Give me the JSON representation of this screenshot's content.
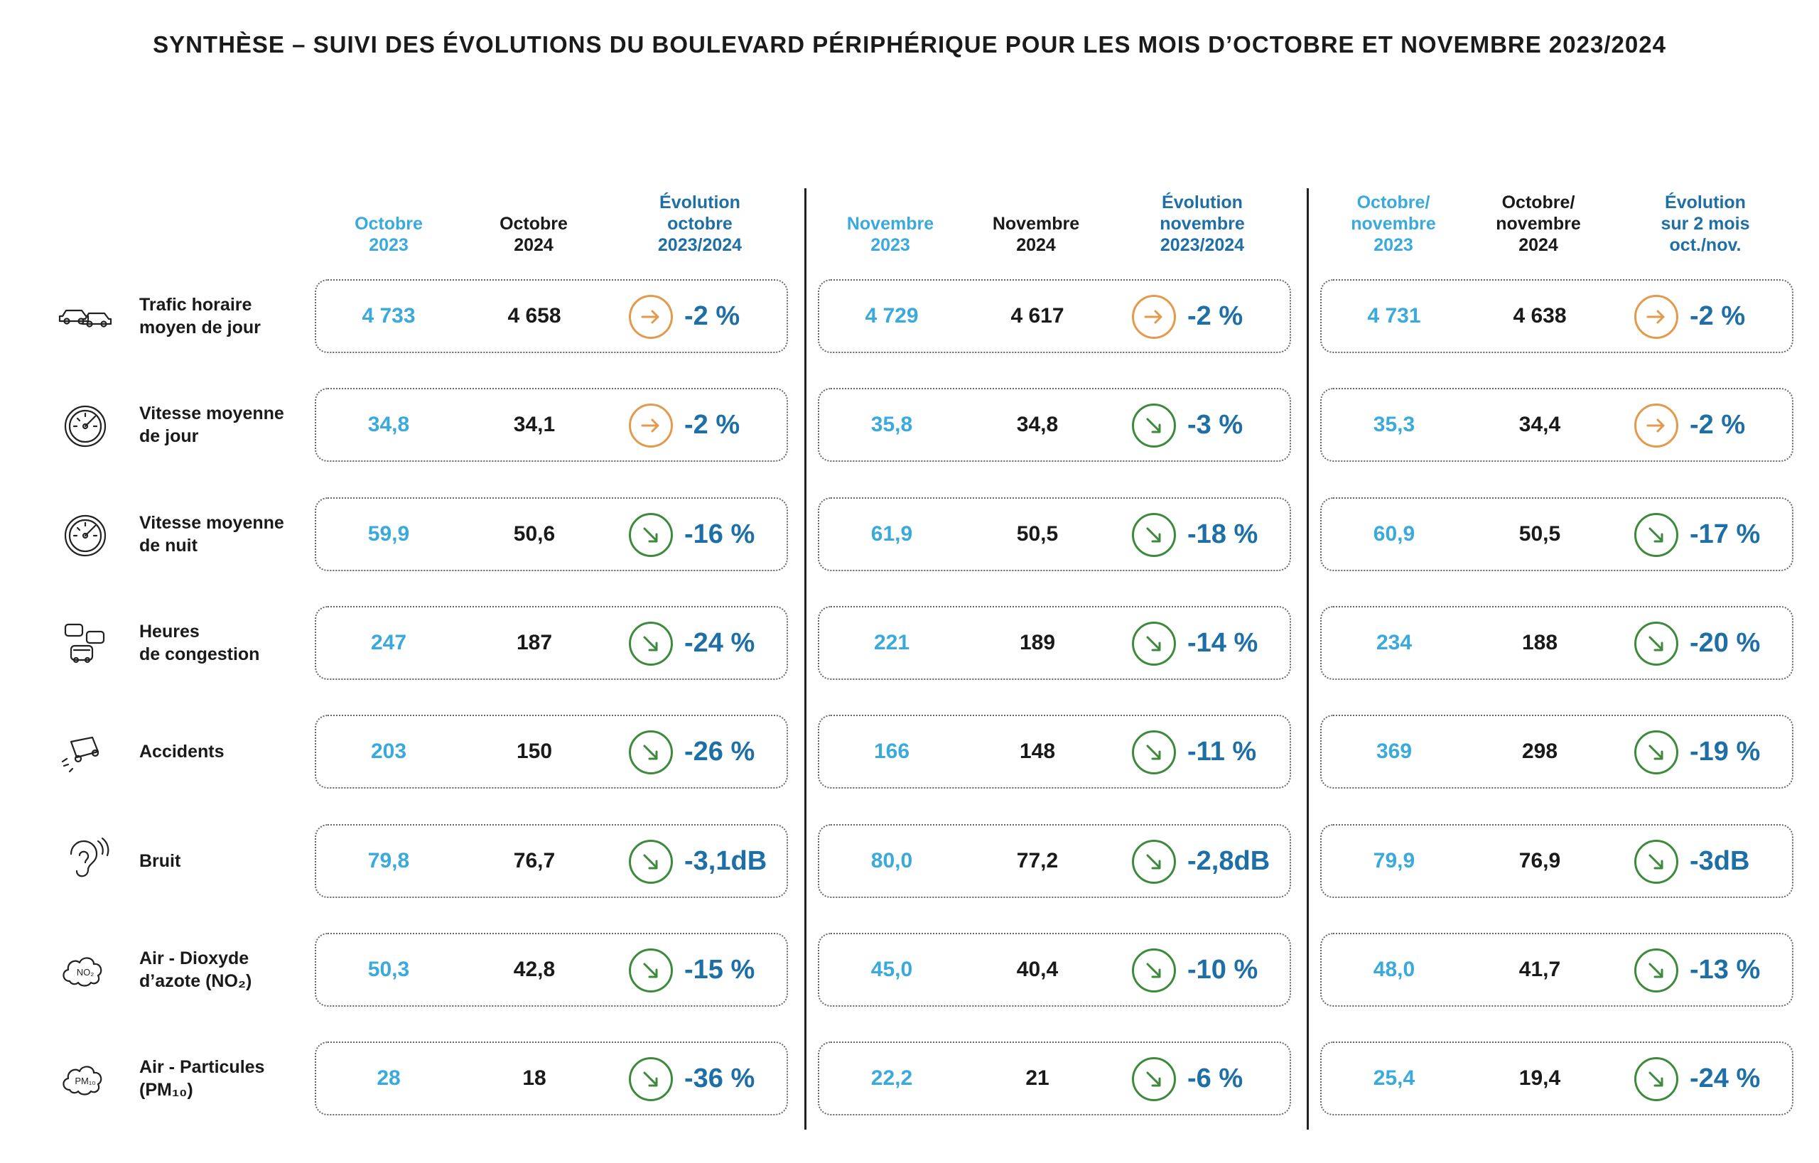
{
  "title": "SYNTHÈSE – SUIVI DES ÉVOLUTIONS DU BOULEVARD PÉRIPHÉRIQUE POUR LES MOIS D’OCTOBRE ET NOVEMBRE 2023/2024",
  "colors": {
    "y2023": "#3aa9dc",
    "y2024": "#1a1a1a",
    "evolution": "#1f6fa7",
    "arrow_flat": "#e39a4c",
    "arrow_down": "#3d8a3d"
  },
  "groups": [
    {
      "headers": {
        "y2023": "Octobre\n2023",
        "y2024": "Octobre\n2024",
        "evo": "Évolution\noctobre\n2023/2024"
      }
    },
    {
      "headers": {
        "y2023": "Novembre\n2023",
        "y2024": "Novembre\n2024",
        "evo": "Évolution\nnovembre\n2023/2024"
      }
    },
    {
      "headers": {
        "y2023": "Octobre/\nnovembre\n2023",
        "y2024": "Octobre/\nnovembre\n2024",
        "evo": "Évolution\nsur 2 mois\noct./nov."
      }
    }
  ],
  "rows": [
    {
      "label": "Trafic horaire\nmoyen de jour",
      "icon": "cars-icon",
      "cells": [
        {
          "v2023": "4 733",
          "v2024": "4 658",
          "trend": "flat",
          "pct": "-2 %"
        },
        {
          "v2023": "4 729",
          "v2024": "4 617",
          "trend": "flat",
          "pct": "-2 %"
        },
        {
          "v2023": "4 731",
          "v2024": "4 638",
          "trend": "flat",
          "pct": "-2 %"
        }
      ]
    },
    {
      "label": "Vitesse moyenne\nde jour",
      "icon": "speedometer-icon",
      "cells": [
        {
          "v2023": "34,8",
          "v2024": "34,1",
          "trend": "flat",
          "pct": "-2 %"
        },
        {
          "v2023": "35,8",
          "v2024": "34,8",
          "trend": "down",
          "pct": "-3 %"
        },
        {
          "v2023": "35,3",
          "v2024": "34,4",
          "trend": "flat",
          "pct": "-2 %"
        }
      ]
    },
    {
      "label": "Vitesse moyenne\nde nuit",
      "icon": "speedometer-icon",
      "cells": [
        {
          "v2023": "59,9",
          "v2024": "50,6",
          "trend": "down",
          "pct": "-16 %"
        },
        {
          "v2023": "61,9",
          "v2024": "50,5",
          "trend": "down",
          "pct": "-18 %"
        },
        {
          "v2023": "60,9",
          "v2024": "50,5",
          "trend": "down",
          "pct": "-17 %"
        }
      ]
    },
    {
      "label": "Heures\nde congestion",
      "icon": "traffic-jam-icon",
      "cells": [
        {
          "v2023": "247",
          "v2024": "187",
          "trend": "down",
          "pct": "-24 %"
        },
        {
          "v2023": "221",
          "v2024": "189",
          "trend": "down",
          "pct": "-14 %"
        },
        {
          "v2023": "234",
          "v2024": "188",
          "trend": "down",
          "pct": "-20 %"
        }
      ]
    },
    {
      "label": "Accidents",
      "icon": "accident-icon",
      "cells": [
        {
          "v2023": "203",
          "v2024": "150",
          "trend": "down",
          "pct": "-26 %"
        },
        {
          "v2023": "166",
          "v2024": "148",
          "trend": "down",
          "pct": "-11 %"
        },
        {
          "v2023": "369",
          "v2024": "298",
          "trend": "down",
          "pct": "-19 %"
        }
      ]
    },
    {
      "label": "Bruit",
      "icon": "ear-icon",
      "cells": [
        {
          "v2023": "79,8",
          "v2024": "76,7",
          "trend": "down",
          "pct": "-3,1dB"
        },
        {
          "v2023": "80,0",
          "v2024": "77,2",
          "trend": "down",
          "pct": "-2,8dB"
        },
        {
          "v2023": "79,9",
          "v2024": "76,9",
          "trend": "down",
          "pct": "-3dB"
        }
      ]
    },
    {
      "label": "Air - Dioxyde\nd’azote (NO₂)",
      "icon": "no2-cloud-icon",
      "cells": [
        {
          "v2023": "50,3",
          "v2024": "42,8",
          "trend": "down",
          "pct": "-15 %"
        },
        {
          "v2023": "45,0",
          "v2024": "40,4",
          "trend": "down",
          "pct": "-10 %"
        },
        {
          "v2023": "48,0",
          "v2024": "41,7",
          "trend": "down",
          "pct": "-13 %"
        }
      ]
    },
    {
      "label": "Air - Particules\n(PM₁₀)",
      "icon": "pm10-cloud-icon",
      "cells": [
        {
          "v2023": "28",
          "v2024": "18",
          "trend": "down",
          "pct": "-36 %"
        },
        {
          "v2023": "22,2",
          "v2024": "21",
          "trend": "down",
          "pct": "-6 %"
        },
        {
          "v2023": "25,4",
          "v2024": "19,4",
          "trend": "down",
          "pct": "-24 %"
        }
      ]
    }
  ],
  "icon_text": {
    "no2": "NO₂",
    "pm10": "PM₁₀"
  }
}
